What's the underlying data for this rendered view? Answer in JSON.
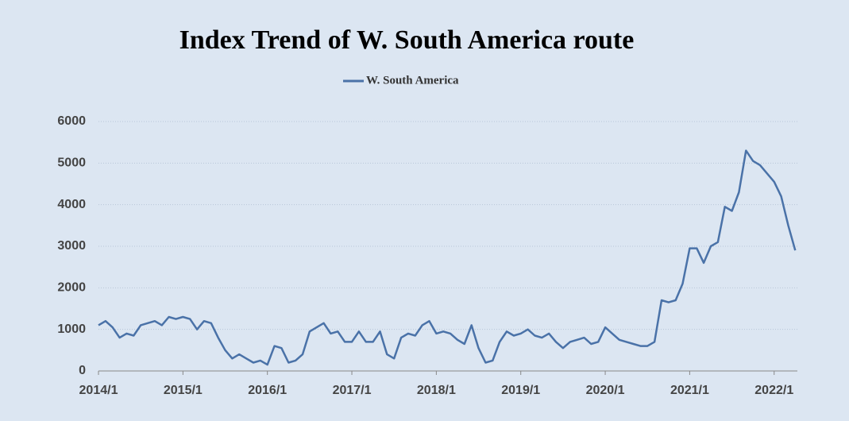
{
  "chart_data": {
    "type": "line",
    "title": "Index Trend of W. South America  route",
    "categories": [
      "2014/1",
      null,
      null,
      null,
      null,
      null,
      null,
      null,
      null,
      null,
      null,
      null,
      "2015/1",
      null,
      null,
      null,
      null,
      null,
      null,
      null,
      null,
      null,
      null,
      null,
      "2016/1",
      null,
      null,
      null,
      null,
      null,
      null,
      null,
      null,
      null,
      null,
      null,
      "2017/1",
      null,
      null,
      null,
      null,
      null,
      null,
      null,
      null,
      null,
      null,
      null,
      "2018/1",
      null,
      null,
      null,
      null,
      null,
      null,
      null,
      null,
      null,
      null,
      null,
      "2019/1",
      null,
      null,
      null,
      null,
      null,
      null,
      null,
      null,
      null,
      null,
      null,
      "2020/1",
      null,
      null,
      null,
      null,
      null,
      null,
      null,
      null,
      null,
      null,
      null,
      "2021/1",
      null,
      null,
      null,
      null,
      null,
      null,
      null,
      null,
      null,
      null,
      null,
      "2022/1",
      null,
      null,
      null
    ],
    "series": [
      {
        "name": "W. South America",
        "color": "#4a72a8",
        "values": [
          1100,
          1200,
          1050,
          800,
          900,
          850,
          1100,
          1150,
          1200,
          1100,
          1300,
          1250,
          1300,
          1250,
          1000,
          1200,
          1150,
          800,
          500,
          300,
          400,
          300,
          200,
          250,
          150,
          600,
          550,
          200,
          250,
          400,
          950,
          1050,
          1150,
          900,
          950,
          700,
          700,
          950,
          700,
          700,
          950,
          400,
          300,
          800,
          900,
          850,
          1100,
          1200,
          900,
          950,
          900,
          750,
          650,
          1100,
          550,
          200,
          250,
          700,
          950,
          850,
          900,
          1000,
          850,
          800,
          900,
          700,
          550,
          700,
          750,
          800,
          650,
          700,
          1050,
          900,
          750,
          700,
          650,
          600,
          600,
          700,
          1700,
          1650,
          1700,
          2100,
          2950,
          2950,
          2600,
          3000,
          3100,
          3950,
          3850,
          4300,
          5300,
          5050,
          4950,
          4750,
          4550,
          4200,
          3500,
          2900
        ]
      }
    ],
    "ylim": [
      0,
      6000
    ],
    "yticks": [
      0,
      1000,
      2000,
      3000,
      4000,
      5000,
      6000
    ],
    "grid": true,
    "legend": "top"
  }
}
